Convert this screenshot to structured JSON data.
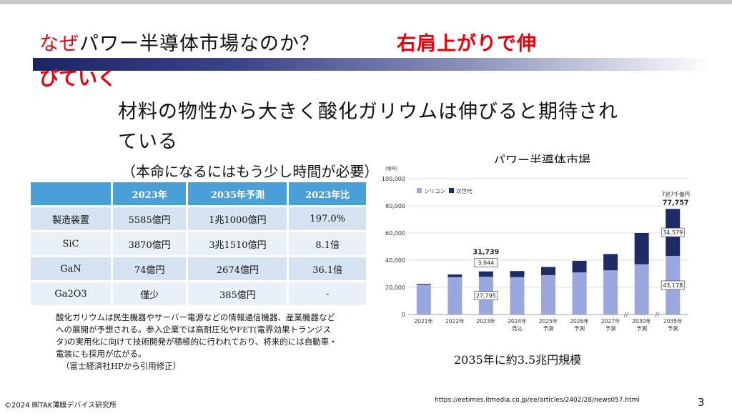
{
  "title": {
    "red_prefix": "なぜ",
    "main": "パワー半導体市場なのか？",
    "side_line1": "右肩上がりで伸",
    "side_line2": "びていく"
  },
  "headline": "材料の物性から大きく酸化ガリウムは伸びると期待されている",
  "sub_note": "（本命になるにはもう少し時間が必要）",
  "table": {
    "headers": [
      "",
      "2023年",
      "2035年予測",
      "2023年比"
    ],
    "rows": [
      [
        "製造装置",
        "5585億円",
        "1兆1000億円",
        "197.0%"
      ],
      [
        "SiC",
        "3870億円",
        "3兆1510億円",
        "8.1倍"
      ],
      [
        "GaN",
        "74億円",
        "2674億円",
        "36.1倍"
      ],
      [
        "Ga2O3",
        "僅少",
        "385億円",
        "-"
      ]
    ]
  },
  "description": "酸化ガリウムは民生機器やサーバー電源などの情報通信機器、産業機器などへの展開が予想される。参入企業では高耐圧化やFET(電界効果トランジスタ)の実用化に向けて技術開発が積極的に行われており、将来的には自動車・電装にも採用が広がる。",
  "description_source": "（富士経済社HPから引用修正）",
  "chart_title": "パワー半導体市場",
  "caption": "2035年に約3.5兆円規模",
  "copyright": "©2024 ㈱TAK薄膜デバイス研究所",
  "url": "https://eetimes.itmedia.co.jp/ee/articles/2402/28/news057.html",
  "page_number": "3",
  "colors": {
    "silicon": "#9aa6de",
    "next_gen": "#1e2a63",
    "header_blue": "#4a9fd6"
  },
  "chart_data": {
    "type": "bar",
    "stacked": true,
    "unit_label": "(億円)",
    "categories": [
      "2021年",
      "2022年",
      "2023年",
      "2024年\n見込",
      "2025年\n予測",
      "2026年\n予測",
      "2027年\n予測",
      "2030年\n予測",
      "2035年\n予測"
    ],
    "series": [
      {
        "name": "シリコン",
        "values": [
          22000,
          27500,
          27795,
          27500,
          29000,
          31000,
          32500,
          37000,
          43178
        ]
      },
      {
        "name": "次世代",
        "values": [
          600,
          2000,
          3944,
          4500,
          6000,
          8500,
          12000,
          23000,
          34579
        ]
      }
    ],
    "ylim": [
      0,
      100000
    ],
    "yticks": [
      "0",
      "20,000",
      "40,000",
      "60,000",
      "80,000",
      "100,000"
    ],
    "annotations": {
      "total_2023": "31,739",
      "total_2035": "77,757",
      "total_2035_note": "7兆7千億円",
      "box_2023_silicon": "27,795",
      "box_2023_next": "3,944",
      "box_2035_silicon": "43,178",
      "box_2035_next": "34,579"
    },
    "legend": "top-left",
    "grid": true
  }
}
